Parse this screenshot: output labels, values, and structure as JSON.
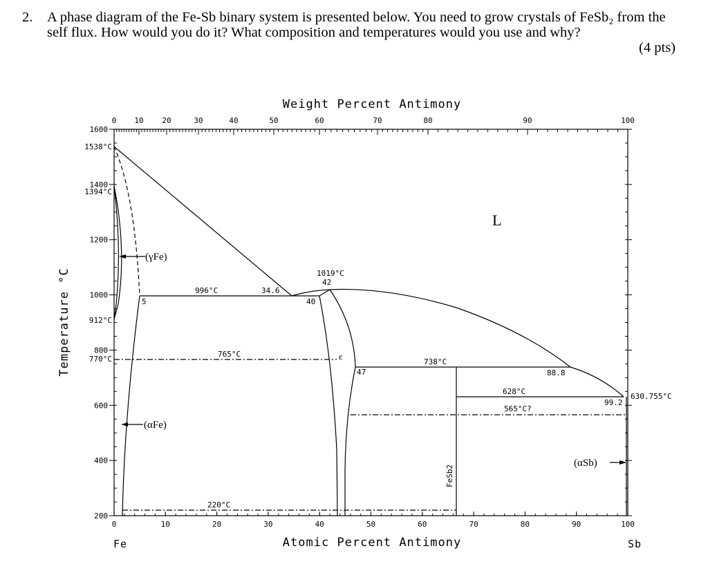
{
  "question": {
    "number": "2.",
    "text": "A phase diagram of the Fe-Sb binary system is presented below. You need to grow crystals of FeSb₂ from the self flux. How would you do it? What composition and temperatures would you use and why?",
    "points": "(4 pts)"
  },
  "diagram": {
    "top_axis_title": "Weight Percent Antimony",
    "bottom_axis_title": "Atomic Percent Antimony",
    "y_axis_title": "Temperature °C",
    "left_element": "Fe",
    "right_element": "Sb",
    "weight_ticks": [
      "0",
      "10",
      "20",
      "30",
      "40",
      "50",
      "60",
      "70",
      "80",
      "90",
      "100"
    ],
    "atomic_ticks": [
      "0",
      "10",
      "20",
      "30",
      "40",
      "50",
      "60",
      "70",
      "80",
      "90",
      "100"
    ],
    "temp_ticks": [
      "1600",
      "1400",
      "1200",
      "1000",
      "800",
      "600",
      "400",
      "200"
    ],
    "temp_labels": [
      "1538°C",
      "1394°C",
      "912°C",
      "770°C"
    ],
    "phase_labels": {
      "liquid": "L",
      "gamma_fe": "(γFe)",
      "alpha_fe": "(αFe)",
      "epsilon": "ε",
      "fesb2": "FeSb2",
      "alpha_sb": "(αSb)"
    },
    "annotations": {
      "t996": "996°C",
      "c34_6": "34.6",
      "c5": "5",
      "t1019": "1019°C",
      "c42": "42",
      "c40": "40",
      "t765": "765°C",
      "t738": "738°C",
      "c47": "47",
      "c88_8": "88.8",
      "t628": "628°C",
      "c99_2": "99.2",
      "t630": "630.755°C",
      "t565": "565°C?",
      "t220": "220°C"
    }
  }
}
